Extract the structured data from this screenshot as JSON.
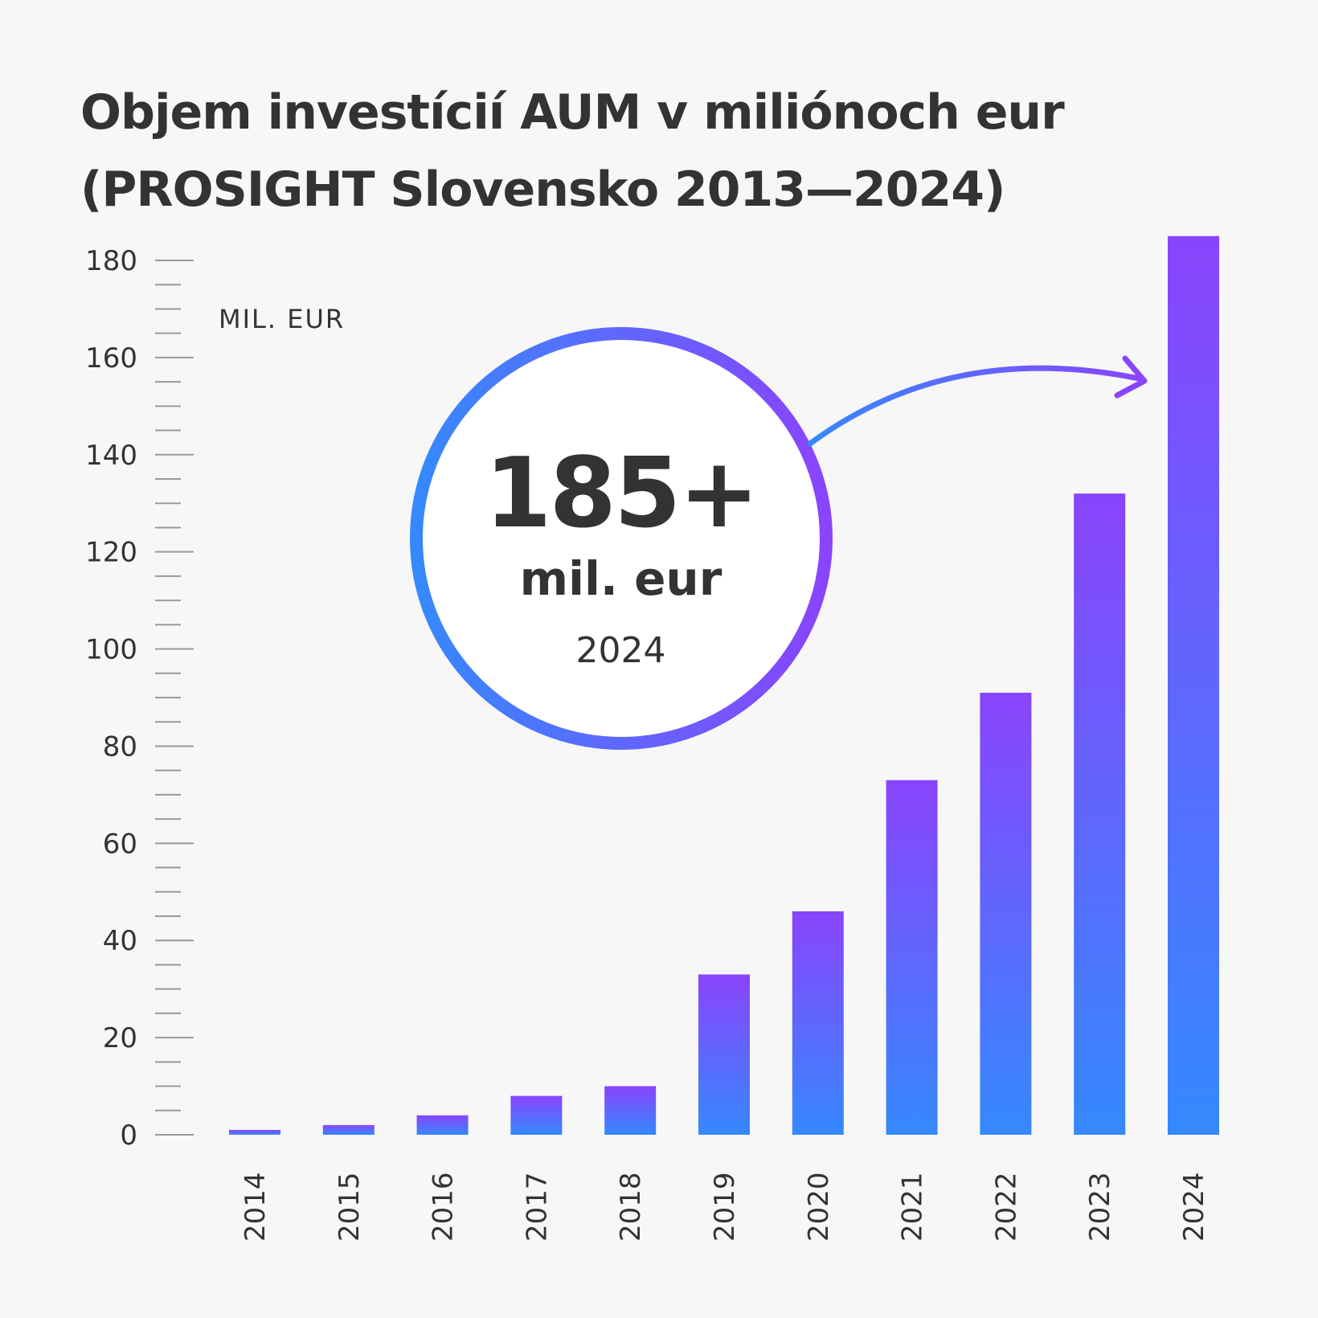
{
  "title": {
    "line1": "Objem investícií AUM v miliónoch eur",
    "line2": "(PROSIGHT Slovensko 2013—2024)"
  },
  "callout": {
    "value": "185+",
    "unit": "mil. eur",
    "year": "2024"
  },
  "colors": {
    "bar_bottom": "#3589fd",
    "bar_top": "#8a44fd",
    "text": "#333333",
    "background": "#f7f7f7",
    "tick": "#9a9a9a"
  },
  "chart_data": {
    "type": "bar",
    "title": "Objem investícií AUM v miliónoch eur (PROSIGHT Slovensko 2013—2024)",
    "xlabel": "",
    "ylabel": "MIL. EUR",
    "categories": [
      "2014",
      "2015",
      "2016",
      "2017",
      "2018",
      "2019",
      "2020",
      "2021",
      "2022",
      "2023",
      "2024"
    ],
    "values": [
      1,
      2,
      4,
      8,
      10,
      33,
      46,
      73,
      91,
      132,
      185
    ],
    "ylim": [
      0,
      180
    ],
    "yticks": [
      0,
      20,
      40,
      60,
      80,
      100,
      120,
      140,
      160,
      180
    ],
    "ytick_labels": [
      "0",
      "20",
      "40",
      "60",
      "80",
      "100",
      "120",
      "140",
      "160",
      "180"
    ],
    "minor_tick_step": 5,
    "grid": false,
    "legend": "none",
    "annotation": "185+ mil. eur 2024"
  }
}
